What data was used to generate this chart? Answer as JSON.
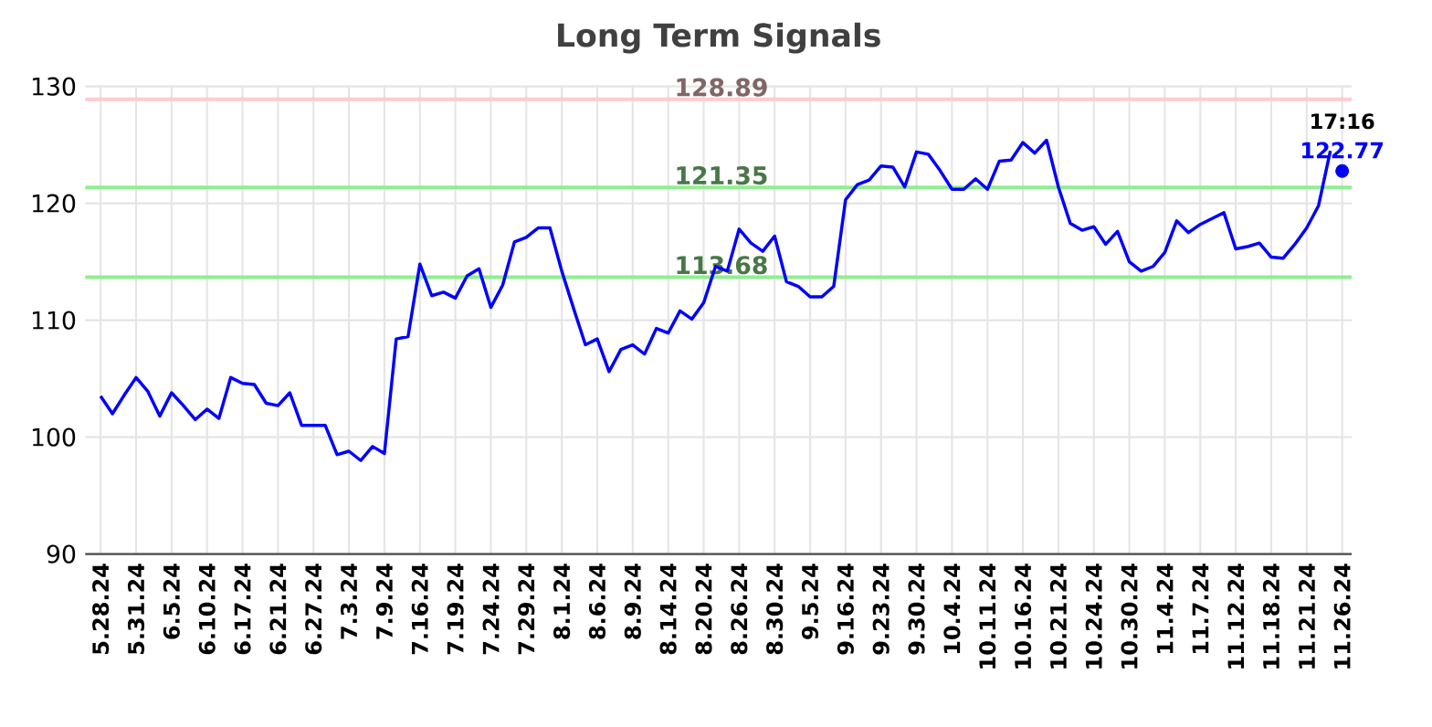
{
  "chart_data": {
    "type": "line",
    "title": "Long Term Signals",
    "categories": [
      "5.28.24",
      null,
      null,
      "5.31.24",
      null,
      null,
      "6.5.24",
      null,
      null,
      "6.10.24",
      null,
      null,
      "6.17.24",
      null,
      null,
      "6.21.24",
      null,
      null,
      "6.27.24",
      null,
      null,
      "7.3.24",
      null,
      null,
      "7.9.24",
      null,
      null,
      "7.16.24",
      null,
      null,
      "7.19.24",
      null,
      null,
      "7.24.24",
      null,
      null,
      "7.29.24",
      null,
      null,
      "8.1.24",
      null,
      null,
      "8.6.24",
      null,
      null,
      "8.9.24",
      null,
      null,
      "8.14.24",
      null,
      null,
      "8.20.24",
      null,
      null,
      "8.26.24",
      null,
      null,
      "8.30.24",
      null,
      null,
      "9.5.24",
      null,
      null,
      "9.16.24",
      null,
      null,
      "9.23.24",
      null,
      null,
      "9.30.24",
      null,
      null,
      "10.4.24",
      null,
      null,
      "10.11.24",
      null,
      null,
      "10.16.24",
      null,
      null,
      "10.21.24",
      null,
      null,
      "10.24.24",
      null,
      null,
      "10.30.24",
      null,
      null,
      "11.4.24",
      null,
      null,
      "11.7.24",
      null,
      null,
      "11.12.24",
      null,
      null,
      "11.18.24",
      null,
      null,
      "11.21.24",
      null,
      null,
      "11.26.24"
    ],
    "series": [
      {
        "color": "#0000ff",
        "marker": "none",
        "values": [
          103.5,
          102.0,
          103.6,
          105.1,
          103.9,
          101.8,
          103.8,
          102.7,
          101.5,
          102.4,
          101.6,
          105.1,
          104.6,
          104.5,
          102.9,
          102.7,
          103.8,
          101.0,
          101.0,
          101.0,
          98.5,
          98.8,
          98.0,
          99.2,
          98.6,
          108.4,
          108.6,
          114.8,
          112.1,
          112.4,
          111.9,
          113.8,
          114.4,
          111.1,
          113.0,
          116.7,
          117.1,
          117.9,
          117.9,
          114.2,
          111.0,
          107.9,
          108.4,
          105.6,
          107.5,
          107.9,
          107.1,
          109.3,
          108.9,
          110.8,
          110.1,
          111.5,
          114.6,
          114.2,
          117.8,
          116.6,
          115.9,
          117.2,
          113.3,
          112.9,
          112.0,
          112.0,
          112.9,
          120.3,
          121.6,
          122.0,
          123.2,
          123.1,
          121.4,
          124.4,
          124.2,
          122.8,
          121.2,
          121.2,
          122.1,
          121.2,
          123.6,
          123.7,
          125.2,
          124.3,
          125.4,
          121.4,
          118.3,
          117.7,
          118.0,
          116.5,
          117.6,
          115.0,
          114.2,
          114.6,
          115.8,
          118.5,
          117.5,
          118.2,
          118.7,
          119.2,
          116.1,
          116.3,
          116.6,
          115.4,
          115.3,
          116.5,
          117.9,
          119.8,
          124.5,
          null
        ]
      },
      {
        "type": "scatter",
        "color": "#0000ff",
        "marker": "circle",
        "x": [
          "11.26.24"
        ],
        "values": [
          122.77
        ],
        "value_labels": [
          "122.77"
        ]
      }
    ],
    "ylim": [
      90,
      130
    ],
    "yticks": [
      90,
      100,
      110,
      120,
      130
    ],
    "grid": true,
    "ref_lines": [
      {
        "axis": "y",
        "value": 128.89,
        "label": "128.89",
        "color": "#ffcccc"
      },
      {
        "axis": "y",
        "value": 121.35,
        "label": "121.35",
        "color": "#90ee90"
      },
      {
        "axis": "y",
        "value": 113.68,
        "label": "113.68",
        "color": "#90ee90"
      }
    ],
    "annotations": [
      {
        "text": "17:16",
        "x": "11.26.24",
        "y": 122.77
      }
    ]
  }
}
